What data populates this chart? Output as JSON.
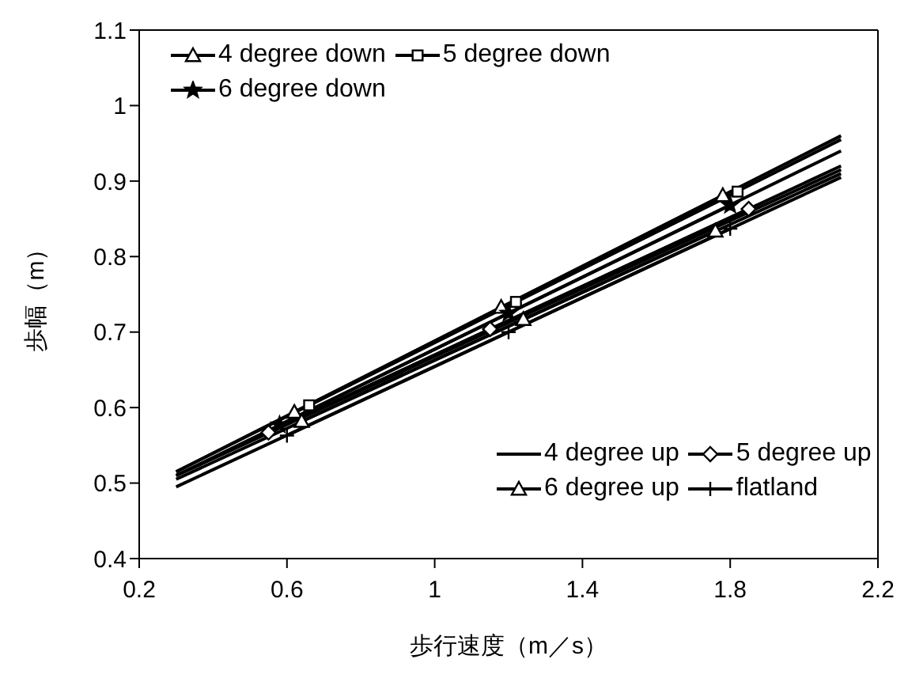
{
  "chart_data": {
    "type": "line",
    "xlabel": "歩行速度（m／s）",
    "ylabel": "歩幅（m）",
    "xlim": [
      0.2,
      2.2
    ],
    "xticks": [
      0.2,
      0.6,
      1,
      1.4,
      1.8,
      2.2
    ],
    "ylim": [
      0.4,
      1.1
    ],
    "yticks": [
      0.4,
      0.5,
      0.6,
      0.7,
      0.8,
      0.9,
      1,
      1.1
    ],
    "legend": "top left",
    "line_style": "solid",
    "series": [
      {
        "name": "4 degree down",
        "color": "#000000",
        "marker": "triangle",
        "x": [
          0.62,
          1.18,
          1.78
        ],
        "values": [
          0.594,
          0.733,
          0.881
        ]
      },
      {
        "name": "5 degree down",
        "color": "#000000",
        "marker": "square",
        "x": [
          0.66,
          1.22,
          1.82
        ],
        "values": [
          0.603,
          0.74,
          0.886
        ]
      },
      {
        "name": "6 degree down",
        "color": "#000000",
        "marker": "star",
        "x": [
          0.58,
          1.2,
          1.8
        ],
        "values": [
          0.577,
          0.725,
          0.868
        ]
      },
      {
        "name": "4 degree up",
        "color": "#000000",
        "marker": "none",
        "x": [
          0.3,
          2.1
        ],
        "values": [
          0.51,
          0.915
        ]
      },
      {
        "name": "5 degree up",
        "color": "#000000",
        "marker": "diamond",
        "x": [
          0.55,
          1.15,
          1.85
        ],
        "values": [
          0.567,
          0.704,
          0.863
        ]
      },
      {
        "name": "6 degree up",
        "color": "#000000",
        "marker": "triangle",
        "x": [
          0.64,
          1.24,
          1.76
        ],
        "values": [
          0.582,
          0.717,
          0.834
        ]
      },
      {
        "name": "flatland",
        "color": "#000000",
        "marker": "cross",
        "x": [
          0.6,
          1.2,
          1.8
        ],
        "values": [
          0.563,
          0.7,
          0.837
        ]
      },
      {
        "color": "#000000",
        "marker": "none",
        "x": [
          0.3,
          2.1
        ],
        "values": [
          0.515,
          0.96
        ]
      },
      {
        "color": "#000000",
        "marker": "none",
        "x": [
          0.3,
          2.1
        ],
        "values": [
          0.515,
          0.955
        ]
      },
      {
        "color": "#000000",
        "marker": "none",
        "x": [
          0.3,
          2.1
        ],
        "values": [
          0.51,
          0.94
        ]
      },
      {
        "color": "#000000",
        "marker": "none",
        "x": [
          0.3,
          2.1
        ],
        "values": [
          0.51,
          0.92
        ]
      },
      {
        "color": "#000000",
        "marker": "none",
        "x": [
          0.3,
          2.1
        ],
        "values": [
          0.505,
          0.91
        ]
      },
      {
        "color": "#000000",
        "marker": "none",
        "x": [
          0.3,
          2.1
        ],
        "values": [
          0.495,
          0.905
        ]
      }
    ]
  }
}
